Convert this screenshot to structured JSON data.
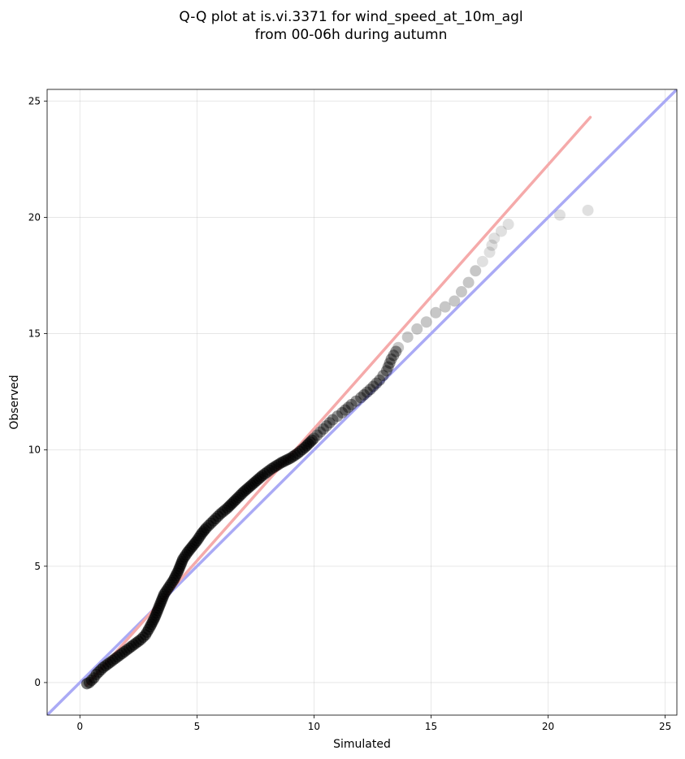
{
  "chart_data": {
    "type": "scatter",
    "title": [
      "Q-Q plot at is.vi.3371 for wind_speed_at_10m_agl",
      "from 00-06h during autumn"
    ],
    "xlabel": "Simulated",
    "ylabel": "Observed",
    "xlim": [
      -1.4,
      25.5
    ],
    "ylim": [
      -1.4,
      25.5
    ],
    "xticks": [
      0,
      5,
      10,
      15,
      20,
      25
    ],
    "yticks": [
      0,
      5,
      10,
      15,
      20,
      25
    ],
    "grid": true,
    "colors": {
      "points": "#000000",
      "identity_line": "#aaaaf5",
      "fit_line": "#f5aaaa"
    },
    "reference_lines": [
      {
        "kind": "identity",
        "x": [
          -1.4,
          25.5
        ],
        "y": [
          -1.4,
          25.5
        ],
        "color": "#aaaaf5"
      },
      {
        "kind": "fit",
        "x": [
          0.3,
          21.8
        ],
        "y": [
          -0.1,
          24.3
        ],
        "color": "#f5aaaa"
      }
    ],
    "points": [
      [
        0.3,
        -0.05
      ],
      [
        0.4,
        0.0
      ],
      [
        0.5,
        0.1
      ],
      [
        0.6,
        0.2
      ],
      [
        0.7,
        0.35
      ],
      [
        0.8,
        0.45
      ],
      [
        0.9,
        0.55
      ],
      [
        1.0,
        0.65
      ],
      [
        1.2,
        0.8
      ],
      [
        1.4,
        0.95
      ],
      [
        1.6,
        1.1
      ],
      [
        1.8,
        1.25
      ],
      [
        2.0,
        1.4
      ],
      [
        2.2,
        1.55
      ],
      [
        2.4,
        1.7
      ],
      [
        2.6,
        1.85
      ],
      [
        2.8,
        2.05
      ],
      [
        3.0,
        2.4
      ],
      [
        3.2,
        2.8
      ],
      [
        3.4,
        3.3
      ],
      [
        3.6,
        3.8
      ],
      [
        3.8,
        4.1
      ],
      [
        4.0,
        4.4
      ],
      [
        4.2,
        4.8
      ],
      [
        4.4,
        5.3
      ],
      [
        4.6,
        5.6
      ],
      [
        4.8,
        5.85
      ],
      [
        5.0,
        6.1
      ],
      [
        5.2,
        6.4
      ],
      [
        5.4,
        6.65
      ],
      [
        5.6,
        6.85
      ],
      [
        5.8,
        7.05
      ],
      [
        6.0,
        7.25
      ],
      [
        6.3,
        7.5
      ],
      [
        6.6,
        7.8
      ],
      [
        7.0,
        8.2
      ],
      [
        7.4,
        8.55
      ],
      [
        7.8,
        8.9
      ],
      [
        8.2,
        9.2
      ],
      [
        8.6,
        9.45
      ],
      [
        9.0,
        9.65
      ],
      [
        9.3,
        9.85
      ],
      [
        9.6,
        10.1
      ],
      [
        10.0,
        10.5
      ],
      [
        10.4,
        10.9
      ],
      [
        10.8,
        11.3
      ],
      [
        11.2,
        11.6
      ],
      [
        11.6,
        11.95
      ],
      [
        12.0,
        12.25
      ],
      [
        12.4,
        12.6
      ],
      [
        12.8,
        13.0
      ],
      [
        13.1,
        13.4
      ],
      [
        13.3,
        13.9
      ],
      [
        13.6,
        14.4
      ],
      [
        14.0,
        14.85
      ],
      [
        14.4,
        15.2
      ],
      [
        14.8,
        15.5
      ],
      [
        15.2,
        15.9
      ],
      [
        15.6,
        16.15
      ],
      [
        16.0,
        16.4
      ],
      [
        16.3,
        16.8
      ],
      [
        16.6,
        17.2
      ],
      [
        16.9,
        17.7
      ],
      [
        17.2,
        18.1
      ],
      [
        17.5,
        18.5
      ],
      [
        17.7,
        19.1
      ],
      [
        18.3,
        19.7
      ],
      [
        20.5,
        20.1
      ],
      [
        21.7,
        20.3
      ]
    ]
  }
}
